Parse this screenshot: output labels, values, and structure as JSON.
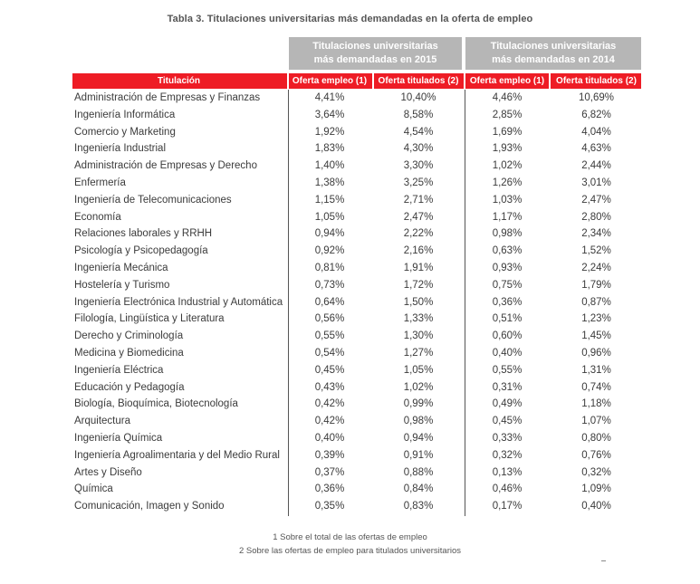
{
  "caption": "Tabla 3. Titulaciones universitarias más demandadas en la oferta de empleo",
  "groups": {
    "g2015": [
      "Titulaciones universitarias",
      "más demandadas en 2015"
    ],
    "g2014": [
      "Titulaciones universitarias",
      "más demandadas en 2014"
    ]
  },
  "headers": {
    "titulacion": "Titulación",
    "oferta_empleo": "Oferta empleo (1)",
    "oferta_titulados": "Oferta titulados (2)"
  },
  "rows": [
    {
      "titulacion": "Administración de Empresas y Finanzas",
      "e2015": "4,41%",
      "t2015": "10,40%",
      "e2014": "4,46%",
      "t2014": "10,69%"
    },
    {
      "titulacion": "Ingeniería Informática",
      "e2015": "3,64%",
      "t2015": "8,58%",
      "e2014": "2,85%",
      "t2014": "6,82%"
    },
    {
      "titulacion": "Comercio y Marketing",
      "e2015": "1,92%",
      "t2015": "4,54%",
      "e2014": "1,69%",
      "t2014": "4,04%"
    },
    {
      "titulacion": "Ingeniería Industrial",
      "e2015": "1,83%",
      "t2015": "4,30%",
      "e2014": "1,93%",
      "t2014": "4,63%"
    },
    {
      "titulacion": "Administración de Empresas y Derecho",
      "e2015": "1,40%",
      "t2015": "3,30%",
      "e2014": "1,02%",
      "t2014": "2,44%"
    },
    {
      "titulacion": "Enfermería",
      "e2015": "1,38%",
      "t2015": "3,25%",
      "e2014": "1,26%",
      "t2014": "3,01%"
    },
    {
      "titulacion": "Ingeniería de Telecomunicaciones",
      "e2015": "1,15%",
      "t2015": "2,71%",
      "e2014": "1,03%",
      "t2014": "2,47%"
    },
    {
      "titulacion": "Economía",
      "e2015": "1,05%",
      "t2015": "2,47%",
      "e2014": "1,17%",
      "t2014": "2,80%"
    },
    {
      "titulacion": "Relaciones  laborales y RRHH",
      "e2015": "0,94%",
      "t2015": "2,22%",
      "e2014": "0,98%",
      "t2014": "2,34%"
    },
    {
      "titulacion": "Psicología y Psicopedagogía",
      "e2015": "0,92%",
      "t2015": "2,16%",
      "e2014": "0,63%",
      "t2014": "1,52%"
    },
    {
      "titulacion": "Ingeniería Mecánica",
      "e2015": "0,81%",
      "t2015": "1,91%",
      "e2014": "0,93%",
      "t2014": "2,24%"
    },
    {
      "titulacion": "Hostelería y Turismo",
      "e2015": "0,73%",
      "t2015": "1,72%",
      "e2014": "0,75%",
      "t2014": "1,79%"
    },
    {
      "titulacion": "Ingeniería Electrónica Industrial y Automática",
      "e2015": "0,64%",
      "t2015": "1,50%",
      "e2014": "0,36%",
      "t2014": "0,87%"
    },
    {
      "titulacion": "Filología, Lingüística y Literatura",
      "e2015": "0,56%",
      "t2015": "1,33%",
      "e2014": "0,51%",
      "t2014": "1,23%"
    },
    {
      "titulacion": "Derecho y Criminología",
      "e2015": "0,55%",
      "t2015": "1,30%",
      "e2014": "0,60%",
      "t2014": "1,45%"
    },
    {
      "titulacion": "Medicina y Biomedicina",
      "e2015": "0,54%",
      "t2015": "1,27%",
      "e2014": "0,40%",
      "t2014": "0,96%"
    },
    {
      "titulacion": "Ingeniería Eléctrica",
      "e2015": "0,45%",
      "t2015": "1,05%",
      "e2014": "0,55%",
      "t2014": "1,31%"
    },
    {
      "titulacion": "Educación y Pedagogía",
      "e2015": "0,43%",
      "t2015": "1,02%",
      "e2014": "0,31%",
      "t2014": "0,74%"
    },
    {
      "titulacion": "Biología, Bioquímica, Biotecnología",
      "e2015": "0,42%",
      "t2015": "0,99%",
      "e2014": "0,49%",
      "t2014": "1,18%"
    },
    {
      "titulacion": "Arquitectura",
      "e2015": "0,42%",
      "t2015": "0,98%",
      "e2014": "0,45%",
      "t2014": "1,07%"
    },
    {
      "titulacion": "Ingeniería Química",
      "e2015": "0,40%",
      "t2015": "0,94%",
      "e2014": "0,33%",
      "t2014": "0,80%"
    },
    {
      "titulacion": "Ingeniería Agroalimentaria y del Medio Rural",
      "e2015": "0,39%",
      "t2015": "0,91%",
      "e2014": "0,32%",
      "t2014": "0,76%"
    },
    {
      "titulacion": "Artes y Diseño",
      "e2015": "0,37%",
      "t2015": "0,88%",
      "e2014": "0,13%",
      "t2014": "0,32%"
    },
    {
      "titulacion": "Química",
      "e2015": "0,36%",
      "t2015": "0,84%",
      "e2014": "0,46%",
      "t2014": "1,09%"
    },
    {
      "titulacion": "Comunicación, Imagen y Sonido",
      "e2015": "0,35%",
      "t2015": "0,83%",
      "e2014": "0,17%",
      "t2014": "0,40%"
    }
  ],
  "notes": [
    "1 Sobre el total de las ofertas de empleo",
    "2 Sobre las ofertas de empleo para titulados universitarios"
  ],
  "colors": {
    "header_red": "#ee1c25",
    "group_gray": "#b6b6b6"
  }
}
